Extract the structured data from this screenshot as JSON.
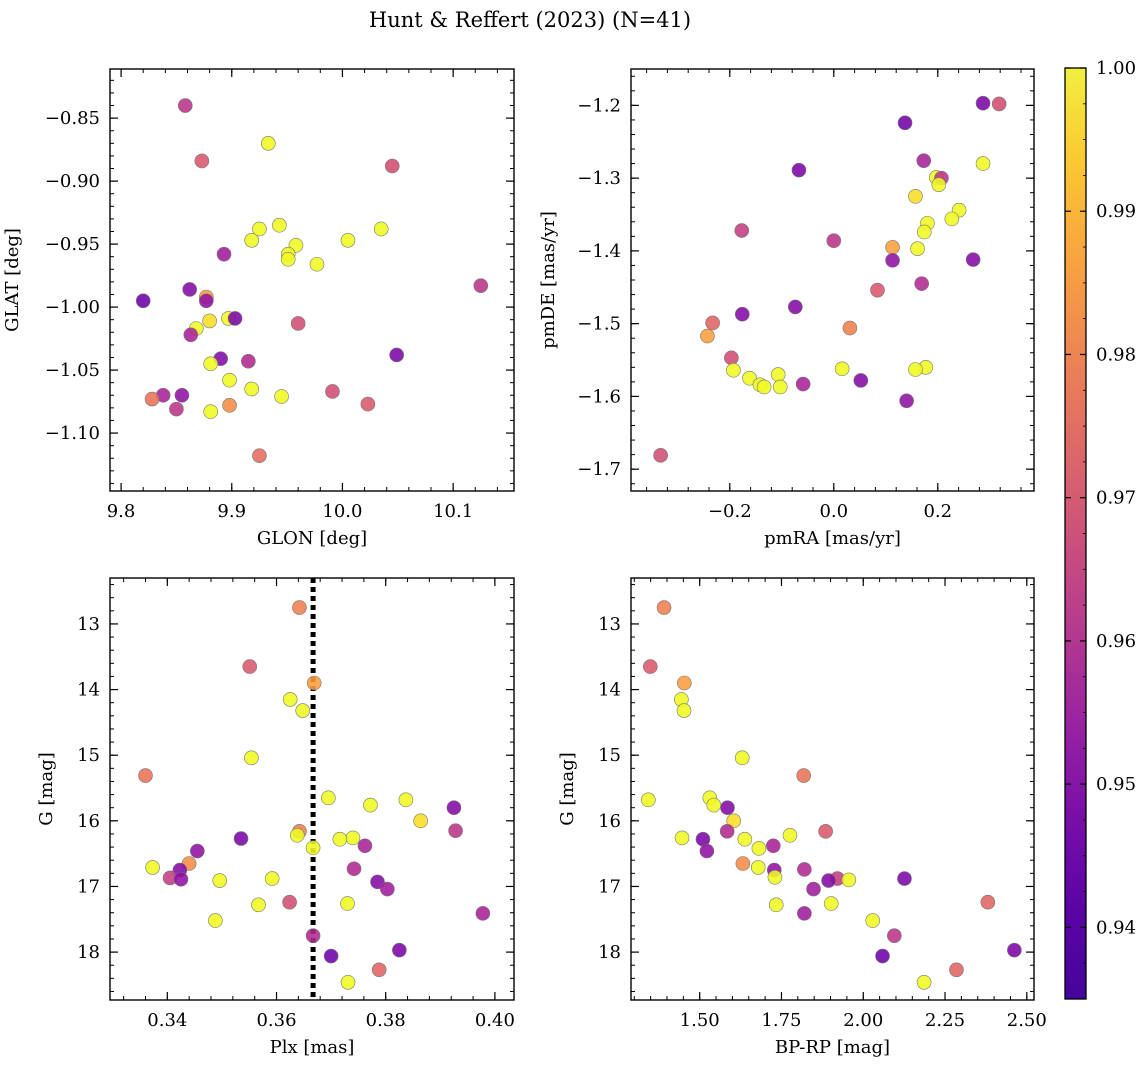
{
  "title": "Hunt & Reffert (2023) (N=41)",
  "colorbar": {
    "range": [
      0.935,
      1.0
    ],
    "ticks": [
      0.94,
      0.95,
      0.96,
      0.97,
      0.98,
      0.99,
      1.0
    ],
    "tick_labels": [
      "0.94",
      "0.95",
      "0.96",
      "0.97",
      "0.98",
      "0.99",
      "1.00"
    ],
    "colormap": "plasma"
  },
  "chart_data": [
    {
      "type": "scatter",
      "id": "glon-glat",
      "xlabel": "GLON [deg]",
      "ylabel": "GLAT [deg]",
      "xlim": [
        9.79,
        10.155
      ],
      "ylim": [
        -1.146,
        -0.811
      ],
      "xticks": [
        9.8,
        9.9,
        10.0,
        10.1
      ],
      "xtick_labels": [
        "9.8",
        "9.9",
        "10.0",
        "10.1"
      ],
      "yticks": [
        -0.85,
        -0.9,
        -0.95,
        -1.0,
        -1.05,
        -1.1
      ],
      "ytick_labels": [
        "−0.85",
        "−0.90",
        "−0.95",
        "−1.00",
        "−1.05",
        "−1.10"
      ],
      "points": [
        {
          "x": 9.858,
          "y": -0.84,
          "c": 0.955
        },
        {
          "x": 9.873,
          "y": -0.884,
          "c": 0.965
        },
        {
          "x": 9.933,
          "y": -0.87,
          "c": 1.0
        },
        {
          "x": 10.045,
          "y": -0.888,
          "c": 0.962
        },
        {
          "x": 9.943,
          "y": -0.935,
          "c": 1.0
        },
        {
          "x": 9.925,
          "y": -0.938,
          "c": 1.0
        },
        {
          "x": 10.035,
          "y": -0.938,
          "c": 1.0
        },
        {
          "x": 10.005,
          "y": -0.947,
          "c": 1.0
        },
        {
          "x": 9.918,
          "y": -0.947,
          "c": 1.0
        },
        {
          "x": 9.958,
          "y": -0.951,
          "c": 1.0
        },
        {
          "x": 9.951,
          "y": -0.958,
          "c": 1.0
        },
        {
          "x": 9.951,
          "y": -0.962,
          "c": 1.0
        },
        {
          "x": 9.977,
          "y": -0.966,
          "c": 1.0
        },
        {
          "x": 9.893,
          "y": -0.958,
          "c": 0.948
        },
        {
          "x": 10.125,
          "y": -0.983,
          "c": 0.955
        },
        {
          "x": 9.82,
          "y": -0.995,
          "c": 0.937
        },
        {
          "x": 9.862,
          "y": -0.986,
          "c": 0.942
        },
        {
          "x": 9.877,
          "y": -0.992,
          "c": 0.982
        },
        {
          "x": 9.877,
          "y": -0.995,
          "c": 0.945
        },
        {
          "x": 9.88,
          "y": -1.011,
          "c": 0.995
        },
        {
          "x": 9.897,
          "y": -1.009,
          "c": 1.0
        },
        {
          "x": 9.903,
          "y": -1.009,
          "c": 0.94
        },
        {
          "x": 9.96,
          "y": -1.013,
          "c": 0.962
        },
        {
          "x": 9.868,
          "y": -1.017,
          "c": 1.0
        },
        {
          "x": 9.863,
          "y": -1.022,
          "c": 0.95
        },
        {
          "x": 10.049,
          "y": -1.038,
          "c": 0.94
        },
        {
          "x": 9.89,
          "y": -1.041,
          "c": 0.942
        },
        {
          "x": 9.915,
          "y": -1.043,
          "c": 0.952
        },
        {
          "x": 9.881,
          "y": -1.045,
          "c": 1.0
        },
        {
          "x": 9.898,
          "y": -1.058,
          "c": 1.0
        },
        {
          "x": 9.918,
          "y": -1.065,
          "c": 1.0
        },
        {
          "x": 9.991,
          "y": -1.067,
          "c": 0.962
        },
        {
          "x": 9.838,
          "y": -1.07,
          "c": 0.95
        },
        {
          "x": 9.855,
          "y": -1.07,
          "c": 0.945
        },
        {
          "x": 9.945,
          "y": -1.071,
          "c": 1.0
        },
        {
          "x": 9.828,
          "y": -1.073,
          "c": 0.972
        },
        {
          "x": 10.023,
          "y": -1.077,
          "c": 0.965
        },
        {
          "x": 9.898,
          "y": -1.078,
          "c": 0.978
        },
        {
          "x": 9.85,
          "y": -1.081,
          "c": 0.955
        },
        {
          "x": 9.881,
          "y": -1.083,
          "c": 1.0
        },
        {
          "x": 9.925,
          "y": -1.118,
          "c": 0.97
        }
      ]
    },
    {
      "type": "scatter",
      "id": "pmra-pmde",
      "xlabel": "pmRA [mas/yr]",
      "ylabel": "pmDE [mas/yr]",
      "xlim": [
        -0.39,
        0.385
      ],
      "ylim": [
        -1.73,
        -1.15
      ],
      "xticks": [
        -0.2,
        0.0,
        0.2
      ],
      "xtick_labels": [
        "−0.2",
        "0.0",
        "0.2"
      ],
      "yticks": [
        -1.2,
        -1.3,
        -1.4,
        -1.5,
        -1.6,
        -1.7
      ],
      "ytick_labels": [
        "−1.2",
        "−1.3",
        "−1.4",
        "−1.5",
        "−1.6",
        "−1.7"
      ],
      "points": [
        {
          "x": 0.287,
          "y": -1.197,
          "c": 0.94
        },
        {
          "x": 0.318,
          "y": -1.198,
          "c": 0.962
        },
        {
          "x": 0.137,
          "y": -1.224,
          "c": 0.938
        },
        {
          "x": 0.173,
          "y": -1.276,
          "c": 0.95
        },
        {
          "x": 0.287,
          "y": -1.28,
          "c": 1.0
        },
        {
          "x": -0.067,
          "y": -1.289,
          "c": 0.94
        },
        {
          "x": 0.197,
          "y": -1.299,
          "c": 1.0
        },
        {
          "x": 0.207,
          "y": -1.3,
          "c": 0.955
        },
        {
          "x": 0.202,
          "y": -1.309,
          "c": 1.0
        },
        {
          "x": 0.157,
          "y": -1.325,
          "c": 0.995
        },
        {
          "x": 0.241,
          "y": -1.344,
          "c": 1.0
        },
        {
          "x": 0.227,
          "y": -1.356,
          "c": 1.0
        },
        {
          "x": 0.18,
          "y": -1.362,
          "c": 1.0
        },
        {
          "x": -0.177,
          "y": -1.372,
          "c": 0.958
        },
        {
          "x": 0.174,
          "y": -1.374,
          "c": 1.0
        },
        {
          "x": 0.0,
          "y": -1.386,
          "c": 0.955
        },
        {
          "x": 0.113,
          "y": -1.395,
          "c": 0.982
        },
        {
          "x": 0.161,
          "y": -1.397,
          "c": 1.0
        },
        {
          "x": 0.268,
          "y": -1.412,
          "c": 0.942
        },
        {
          "x": 0.113,
          "y": -1.413,
          "c": 0.945
        },
        {
          "x": 0.169,
          "y": -1.445,
          "c": 0.952
        },
        {
          "x": 0.084,
          "y": -1.454,
          "c": 0.965
        },
        {
          "x": -0.074,
          "y": -1.477,
          "c": 0.942
        },
        {
          "x": -0.176,
          "y": -1.487,
          "c": 0.942
        },
        {
          "x": -0.233,
          "y": -1.499,
          "c": 0.968
        },
        {
          "x": 0.031,
          "y": -1.506,
          "c": 0.975
        },
        {
          "x": -0.243,
          "y": -1.517,
          "c": 0.982
        },
        {
          "x": -0.197,
          "y": -1.547,
          "c": 0.962
        },
        {
          "x": 0.177,
          "y": -1.56,
          "c": 1.0
        },
        {
          "x": 0.016,
          "y": -1.562,
          "c": 1.0
        },
        {
          "x": 0.157,
          "y": -1.563,
          "c": 1.0
        },
        {
          "x": -0.193,
          "y": -1.564,
          "c": 1.0
        },
        {
          "x": -0.107,
          "y": -1.57,
          "c": 1.0
        },
        {
          "x": -0.162,
          "y": -1.575,
          "c": 1.0
        },
        {
          "x": 0.052,
          "y": -1.578,
          "c": 0.942
        },
        {
          "x": -0.059,
          "y": -1.583,
          "c": 0.95
        },
        {
          "x": -0.142,
          "y": -1.584,
          "c": 1.0
        },
        {
          "x": -0.134,
          "y": -1.587,
          "c": 1.0
        },
        {
          "x": -0.103,
          "y": -1.587,
          "c": 1.0
        },
        {
          "x": 0.14,
          "y": -1.606,
          "c": 0.945
        },
        {
          "x": -0.333,
          "y": -1.681,
          "c": 0.962
        }
      ]
    },
    {
      "type": "scatter",
      "id": "plx-g",
      "xlabel": "Plx [mas]",
      "ylabel": "G [mag]",
      "xlim": [
        0.3295,
        0.4035
      ],
      "ylim": [
        18.73,
        12.3
      ],
      "invert_y": true,
      "vline": {
        "x": 0.3667,
        "style": "dotted"
      },
      "xticks": [
        0.34,
        0.36,
        0.38,
        0.4
      ],
      "xtick_labels": [
        "0.34",
        "0.36",
        "0.38",
        "0.40"
      ],
      "yticks": [
        13,
        14,
        15,
        16,
        17,
        18
      ],
      "ytick_labels": [
        "13",
        "14",
        "15",
        "16",
        "17",
        "18"
      ],
      "points": [
        {
          "x": 0.3642,
          "y": 12.75,
          "c": 0.975
        },
        {
          "x": 0.3551,
          "y": 13.65,
          "c": 0.965
        },
        {
          "x": 0.3669,
          "y": 13.9,
          "c": 0.982
        },
        {
          "x": 0.3625,
          "y": 14.15,
          "c": 1.0
        },
        {
          "x": 0.3648,
          "y": 14.32,
          "c": 1.0
        },
        {
          "x": 0.3554,
          "y": 15.04,
          "c": 1.0
        },
        {
          "x": 0.336,
          "y": 15.31,
          "c": 0.972
        },
        {
          "x": 0.3695,
          "y": 15.65,
          "c": 1.0
        },
        {
          "x": 0.3837,
          "y": 15.68,
          "c": 1.0
        },
        {
          "x": 0.3772,
          "y": 15.76,
          "c": 1.0
        },
        {
          "x": 0.3925,
          "y": 15.8,
          "c": 0.942
        },
        {
          "x": 0.3864,
          "y": 16.0,
          "c": 0.995
        },
        {
          "x": 0.3642,
          "y": 16.16,
          "c": 0.975
        },
        {
          "x": 0.3928,
          "y": 16.15,
          "c": 0.955
        },
        {
          "x": 0.3638,
          "y": 16.22,
          "c": 1.0
        },
        {
          "x": 0.3535,
          "y": 16.27,
          "c": 0.94
        },
        {
          "x": 0.374,
          "y": 16.26,
          "c": 1.0
        },
        {
          "x": 0.3716,
          "y": 16.28,
          "c": 1.0
        },
        {
          "x": 0.3762,
          "y": 16.38,
          "c": 0.95
        },
        {
          "x": 0.3667,
          "y": 16.41,
          "c": 1.0
        },
        {
          "x": 0.3455,
          "y": 16.46,
          "c": 0.945
        },
        {
          "x": 0.344,
          "y": 16.65,
          "c": 0.978
        },
        {
          "x": 0.3373,
          "y": 16.71,
          "c": 1.0
        },
        {
          "x": 0.3742,
          "y": 16.73,
          "c": 0.952
        },
        {
          "x": 0.3423,
          "y": 16.75,
          "c": 0.942
        },
        {
          "x": 0.3405,
          "y": 16.87,
          "c": 0.958
        },
        {
          "x": 0.3425,
          "y": 16.89,
          "c": 0.945
        },
        {
          "x": 0.3592,
          "y": 16.88,
          "c": 1.0
        },
        {
          "x": 0.3496,
          "y": 16.91,
          "c": 1.0
        },
        {
          "x": 0.3785,
          "y": 16.93,
          "c": 0.942
        },
        {
          "x": 0.3803,
          "y": 17.04,
          "c": 0.948
        },
        {
          "x": 0.3624,
          "y": 17.24,
          "c": 0.962
        },
        {
          "x": 0.373,
          "y": 17.26,
          "c": 1.0
        },
        {
          "x": 0.3567,
          "y": 17.28,
          "c": 1.0
        },
        {
          "x": 0.3978,
          "y": 17.41,
          "c": 0.95
        },
        {
          "x": 0.3488,
          "y": 17.52,
          "c": 1.0
        },
        {
          "x": 0.3667,
          "y": 17.75,
          "c": 0.952
        },
        {
          "x": 0.3825,
          "y": 17.97,
          "c": 0.94
        },
        {
          "x": 0.37,
          "y": 18.06,
          "c": 0.937
        },
        {
          "x": 0.3788,
          "y": 18.27,
          "c": 0.968
        },
        {
          "x": 0.3731,
          "y": 18.46,
          "c": 1.0
        }
      ]
    },
    {
      "type": "scatter",
      "id": "bprp-g",
      "xlabel": "BP-RP [mag]",
      "ylabel": "G [mag]",
      "xlim": [
        1.29,
        2.522
      ],
      "ylim": [
        18.73,
        12.3
      ],
      "invert_y": true,
      "xticks": [
        1.5,
        1.75,
        2.0,
        2.25,
        2.5
      ],
      "xtick_labels": [
        "1.50",
        "1.75",
        "2.00",
        "2.25",
        "2.50"
      ],
      "yticks": [
        13,
        14,
        15,
        16,
        17,
        18
      ],
      "ytick_labels": [
        "13",
        "14",
        "15",
        "16",
        "17",
        "18"
      ],
      "points": [
        {
          "x": 1.391,
          "y": 12.75,
          "c": 0.975
        },
        {
          "x": 1.349,
          "y": 13.65,
          "c": 0.965
        },
        {
          "x": 1.453,
          "y": 13.9,
          "c": 0.982
        },
        {
          "x": 1.444,
          "y": 14.15,
          "c": 1.0
        },
        {
          "x": 1.452,
          "y": 14.32,
          "c": 1.0
        },
        {
          "x": 1.63,
          "y": 15.04,
          "c": 1.0
        },
        {
          "x": 1.818,
          "y": 15.31,
          "c": 0.972
        },
        {
          "x": 1.531,
          "y": 15.65,
          "c": 1.0
        },
        {
          "x": 1.343,
          "y": 15.68,
          "c": 1.0
        },
        {
          "x": 1.543,
          "y": 15.76,
          "c": 1.0
        },
        {
          "x": 1.585,
          "y": 15.8,
          "c": 0.942
        },
        {
          "x": 1.604,
          "y": 16.0,
          "c": 0.995
        },
        {
          "x": 1.584,
          "y": 16.16,
          "c": 0.952
        },
        {
          "x": 1.885,
          "y": 16.16,
          "c": 0.965
        },
        {
          "x": 1.776,
          "y": 16.22,
          "c": 1.0
        },
        {
          "x": 1.446,
          "y": 16.26,
          "c": 1.0
        },
        {
          "x": 1.51,
          "y": 16.28,
          "c": 0.94
        },
        {
          "x": 1.638,
          "y": 16.28,
          "c": 1.0
        },
        {
          "x": 1.725,
          "y": 16.38,
          "c": 0.95
        },
        {
          "x": 1.681,
          "y": 16.42,
          "c": 1.0
        },
        {
          "x": 1.522,
          "y": 16.46,
          "c": 0.945
        },
        {
          "x": 1.632,
          "y": 16.65,
          "c": 0.978
        },
        {
          "x": 1.679,
          "y": 16.71,
          "c": 1.0
        },
        {
          "x": 1.728,
          "y": 16.75,
          "c": 0.945
        },
        {
          "x": 1.82,
          "y": 16.74,
          "c": 0.952
        },
        {
          "x": 1.73,
          "y": 16.86,
          "c": 1.0
        },
        {
          "x": 1.921,
          "y": 16.88,
          "c": 0.958
        },
        {
          "x": 1.894,
          "y": 16.91,
          "c": 0.942
        },
        {
          "x": 1.956,
          "y": 16.9,
          "c": 1.0
        },
        {
          "x": 2.126,
          "y": 16.88,
          "c": 0.94
        },
        {
          "x": 1.848,
          "y": 17.04,
          "c": 0.948
        },
        {
          "x": 2.381,
          "y": 17.24,
          "c": 0.968
        },
        {
          "x": 1.734,
          "y": 17.28,
          "c": 1.0
        },
        {
          "x": 1.902,
          "y": 17.26,
          "c": 1.0
        },
        {
          "x": 1.82,
          "y": 17.41,
          "c": 0.948
        },
        {
          "x": 2.029,
          "y": 17.52,
          "c": 1.0
        },
        {
          "x": 2.095,
          "y": 17.75,
          "c": 0.955
        },
        {
          "x": 2.462,
          "y": 17.97,
          "c": 0.94
        },
        {
          "x": 2.059,
          "y": 18.06,
          "c": 0.937
        },
        {
          "x": 2.285,
          "y": 18.27,
          "c": 0.968
        },
        {
          "x": 2.186,
          "y": 18.46,
          "c": 1.0
        }
      ]
    }
  ]
}
